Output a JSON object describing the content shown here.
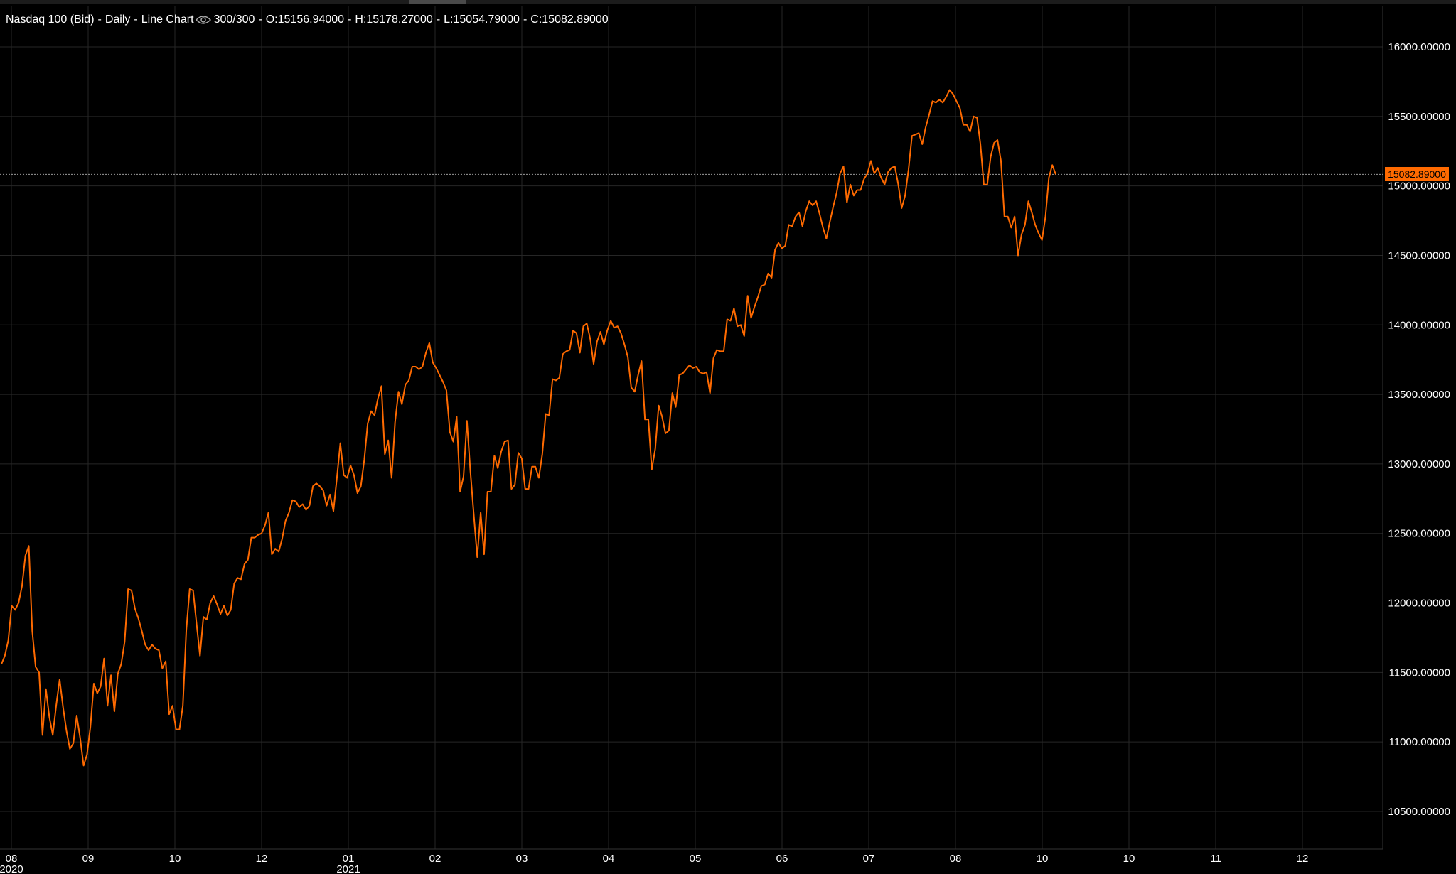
{
  "header": {
    "instrument": "Nasdaq 100 (Bid)",
    "interval": "Daily",
    "chart_type": "Line Chart",
    "bar_count": "300/300",
    "open": "O:15156.94000",
    "high": "H:15178.27000",
    "low": "L:15054.79000",
    "close": "C:15082.89000"
  },
  "price_badge": "15082.89000",
  "colors": {
    "background": "#000000",
    "line": "#ff6a00",
    "grid": "#262626",
    "badge": "#ff6a00"
  },
  "chart_data": {
    "type": "line",
    "title": "",
    "xlabel": "",
    "ylabel": "",
    "grid": true,
    "ylim": [
      10250,
      16250
    ],
    "y_ticks": [
      {
        "value": 16000,
        "label": "16000.00000"
      },
      {
        "value": 15500,
        "label": "15500.00000"
      },
      {
        "value": 15000,
        "label": "15000.00000"
      },
      {
        "value": 14500,
        "label": "14500.00000"
      },
      {
        "value": 14000,
        "label": "14000.00000"
      },
      {
        "value": 13500,
        "label": "13500.00000"
      },
      {
        "value": 13000,
        "label": "13000.00000"
      },
      {
        "value": 12500,
        "label": "12500.00000"
      },
      {
        "value": 12000,
        "label": "12000.00000"
      },
      {
        "value": 11500,
        "label": "11500.00000"
      },
      {
        "value": 11000,
        "label": "11000.00000"
      },
      {
        "value": 10500,
        "label": "10500.00000"
      }
    ],
    "x_ticks": [
      {
        "label": "08",
        "sublabel": "2020"
      },
      {
        "label": "09",
        "sublabel": ""
      },
      {
        "label": "10",
        "sublabel": ""
      },
      {
        "label": "12",
        "sublabel": ""
      },
      {
        "label": "01",
        "sublabel": "2021"
      },
      {
        "label": "02",
        "sublabel": ""
      },
      {
        "label": "03",
        "sublabel": ""
      },
      {
        "label": "04",
        "sublabel": ""
      },
      {
        "label": "05",
        "sublabel": ""
      },
      {
        "label": "06",
        "sublabel": ""
      },
      {
        "label": "07",
        "sublabel": ""
      },
      {
        "label": "08",
        "sublabel": ""
      },
      {
        "label": "10",
        "sublabel": ""
      },
      {
        "label": "10",
        "sublabel": ""
      },
      {
        "label": "11",
        "sublabel": ""
      },
      {
        "label": "12",
        "sublabel": ""
      }
    ],
    "last_value": 15082.89,
    "series": [
      {
        "values": [
          11560,
          11620,
          11730,
          11980,
          11950,
          12000,
          12120,
          12340,
          12410,
          11800,
          11540,
          11500,
          11050,
          11380,
          11180,
          11050,
          11260,
          11450,
          11250,
          11080,
          10950,
          10990,
          11190,
          11030,
          10830,
          10910,
          11110,
          11420,
          11350,
          11400,
          11600,
          11260,
          11480,
          11220,
          11490,
          11560,
          11720,
          12100,
          12090,
          11960,
          11890,
          11800,
          11700,
          11660,
          11700,
          11670,
          11660,
          11530,
          11580,
          11200,
          11260,
          11090,
          11090,
          11260,
          11800,
          12100,
          12090,
          11850,
          11620,
          11900,
          11880,
          12000,
          12050,
          11990,
          11920,
          11980,
          11910,
          11950,
          12140,
          12180,
          12170,
          12280,
          12310,
          12470,
          12470,
          12490,
          12500,
          12560,
          12650,
          12350,
          12390,
          12370,
          12460,
          12590,
          12650,
          12740,
          12730,
          12690,
          12710,
          12670,
          12700,
          12840,
          12860,
          12840,
          12810,
          12700,
          12780,
          12660,
          12900,
          13150,
          12920,
          12900,
          12990,
          12920,
          12790,
          12840,
          13030,
          13290,
          13380,
          13350,
          13470,
          13560,
          13070,
          13170,
          12900,
          13300,
          13520,
          13430,
          13570,
          13600,
          13700,
          13700,
          13680,
          13700,
          13800,
          13870,
          13730,
          13690,
          13640,
          13590,
          13530,
          13230,
          13160,
          13340,
          12800,
          12910,
          13310,
          12950,
          12630,
          12330,
          12650,
          12350,
          12800,
          12800,
          13060,
          12970,
          13090,
          13160,
          13170,
          12820,
          12850,
          13080,
          13040,
          12820,
          12820,
          12980,
          12980,
          12900,
          13070,
          13360,
          13350,
          13610,
          13600,
          13620,
          13790,
          13810,
          13820,
          13960,
          13940,
          13800,
          13990,
          14010,
          13900,
          13720,
          13880,
          13950,
          13860,
          13960,
          14030,
          13980,
          13990,
          13940,
          13860,
          13770,
          13550,
          13520,
          13640,
          13740,
          13320,
          13320,
          12960,
          13110,
          13420,
          13340,
          13220,
          13240,
          13510,
          13410,
          13640,
          13650,
          13680,
          13710,
          13690,
          13700,
          13660,
          13650,
          13660,
          13510,
          13760,
          13820,
          13810,
          13810,
          14040,
          14030,
          14120,
          13990,
          14000,
          13920,
          14210,
          14050,
          14130,
          14200,
          14280,
          14290,
          14370,
          14340,
          14540,
          14590,
          14550,
          14570,
          14720,
          14710,
          14780,
          14810,
          14710,
          14820,
          14890,
          14860,
          14890,
          14800,
          14700,
          14620,
          14740,
          14850,
          14950,
          15090,
          15140,
          14880,
          15010,
          14930,
          14970,
          14970,
          15050,
          15090,
          15180,
          15090,
          15130,
          15060,
          15010,
          15100,
          15130,
          15140,
          15010,
          14840,
          14930,
          15120,
          15360,
          15370,
          15380,
          15300,
          15420,
          15510,
          15610,
          15600,
          15620,
          15600,
          15640,
          15690,
          15660,
          15610,
          15560,
          15440,
          15440,
          15390,
          15500,
          15490,
          15300,
          15010,
          15010,
          15210,
          15310,
          15330,
          15180,
          14780,
          14780,
          14700,
          14780,
          14500,
          14650,
          14720,
          14890,
          14810,
          14720,
          14660,
          14610,
          14780,
          15060,
          15150,
          15082.89
        ]
      }
    ]
  }
}
